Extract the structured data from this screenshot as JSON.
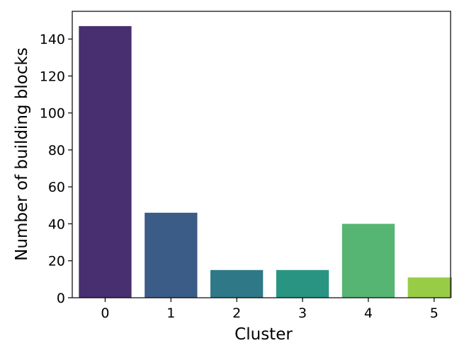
{
  "chart_data": {
    "type": "bar",
    "title": "",
    "xlabel": "Cluster",
    "ylabel": "Number of building blocks",
    "categories": [
      "0",
      "1",
      "2",
      "3",
      "4",
      "5"
    ],
    "values": [
      147,
      46,
      15,
      15,
      40,
      11
    ],
    "ylim": [
      0,
      155
    ],
    "yticks": [
      0,
      20,
      40,
      60,
      80,
      100,
      120,
      140
    ],
    "grid": false,
    "legend": "none",
    "colors": [
      "#482f6f",
      "#3b5c86",
      "#2f7887",
      "#2a9483",
      "#56b573",
      "#98cc47"
    ]
  }
}
